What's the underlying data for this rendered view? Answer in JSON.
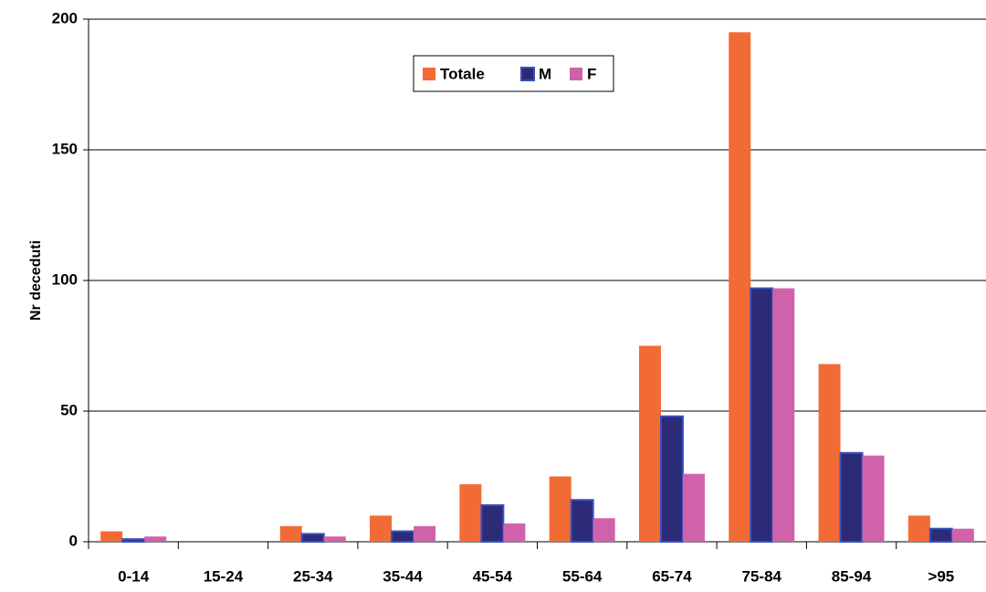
{
  "chart_data": {
    "type": "bar",
    "y_label": "Nr deceduti",
    "categories": [
      "0-14",
      "15-24",
      "25-34",
      "35-44",
      "45-54",
      "55-64",
      "65-74",
      "75-84",
      "85-94",
      ">95"
    ],
    "series": [
      {
        "name": "Totale",
        "color": "#f26b35",
        "values": [
          4,
          0,
          6,
          10,
          22,
          25,
          75,
          195,
          68,
          10
        ]
      },
      {
        "name": "M",
        "color": "#2b2b78",
        "values": [
          1,
          0,
          3,
          4,
          14,
          16,
          48,
          97,
          34,
          5
        ]
      },
      {
        "name": "F",
        "color": "#d062ac",
        "values": [
          2,
          0,
          2,
          6,
          7,
          9,
          26,
          97,
          33,
          5
        ]
      }
    ],
    "ylim": [
      0,
      200
    ],
    "yticks": [
      0,
      50,
      100,
      150,
      200
    ],
    "grid": true,
    "legend": "top"
  }
}
